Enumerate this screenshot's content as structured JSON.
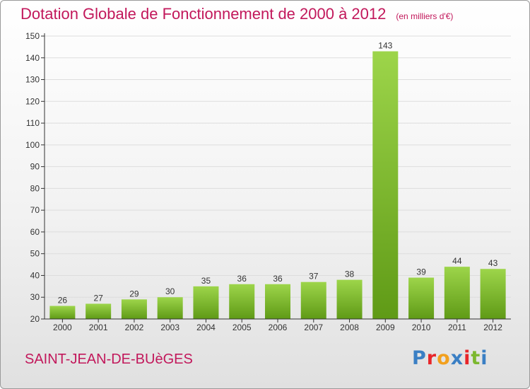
{
  "title": "Dotation Globale de Fonctionnement de 2000 à 2012",
  "unit_note": "(en milliers d'€)",
  "commune": "SAINT-JEAN-DE-BUèGES",
  "logo": {
    "text": "Proxiti",
    "colors": [
      "#3a7fc4",
      "#e8262a",
      "#f2a01e",
      "#3a7fc4",
      "#e8262a",
      "#7cb82f",
      "#3a7fc4"
    ]
  },
  "colors": {
    "title": "#c2185b",
    "bar_top": "#9dd54a",
    "bar_bottom": "#5f9a16",
    "axis": "#333333",
    "grid": "#dddddd"
  },
  "chart_data": {
    "type": "bar",
    "categories": [
      "2000",
      "2001",
      "2002",
      "2003",
      "2004",
      "2005",
      "2006",
      "2007",
      "2008",
      "2009",
      "2010",
      "2011",
      "2012"
    ],
    "values": [
      26,
      27,
      29,
      30,
      35,
      36,
      36,
      37,
      38,
      143,
      39,
      44,
      43
    ],
    "ylim": [
      20,
      150
    ],
    "yticks": [
      20,
      30,
      40,
      50,
      60,
      70,
      80,
      90,
      100,
      110,
      120,
      130,
      140,
      150
    ],
    "grid": true,
    "legend": "none"
  }
}
